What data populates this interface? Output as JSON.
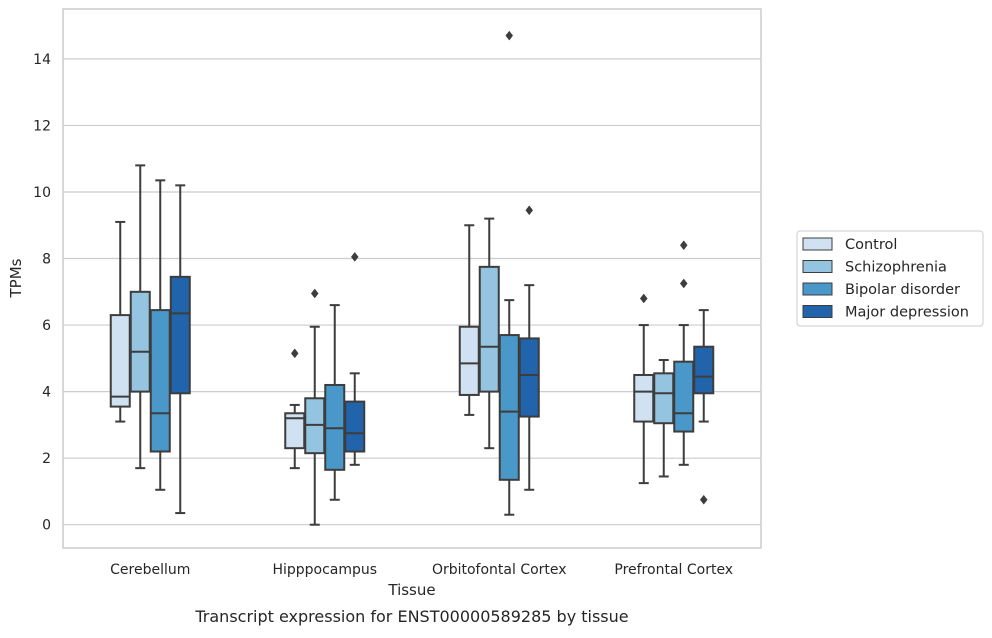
{
  "chart_data": {
    "type": "box",
    "title": "Transcript expression for ENST00000589285 by tissue",
    "xlabel": "Tissue",
    "ylabel": "TPMs",
    "ylim": [
      -0.7,
      15.5
    ],
    "yticks": [
      0,
      2,
      4,
      6,
      8,
      10,
      12,
      14
    ],
    "grid": true,
    "legend_position": "right",
    "categories": [
      "Cerebellum",
      "Hipppocampus",
      "Orbitofontal Cortex",
      "Prefrontal Cortex"
    ],
    "series": [
      {
        "name": "Control",
        "color": "#d0e1f2",
        "boxes": [
          {
            "whisker_low": 3.1,
            "q1": 3.55,
            "median": 3.85,
            "q3": 6.3,
            "whisker_high": 9.1,
            "outliers": []
          },
          {
            "whisker_low": 1.7,
            "q1": 2.3,
            "median": 3.2,
            "q3": 3.35,
            "whisker_high": 3.6,
            "outliers": [
              5.15
            ]
          },
          {
            "whisker_low": 3.3,
            "q1": 3.9,
            "median": 4.85,
            "q3": 5.95,
            "whisker_high": 9.0,
            "outliers": []
          },
          {
            "whisker_low": 1.25,
            "q1": 3.1,
            "median": 4.0,
            "q3": 4.5,
            "whisker_high": 6.0,
            "outliers": [
              6.8
            ]
          }
        ]
      },
      {
        "name": "Schizophrenia",
        "color": "#94c4df",
        "boxes": [
          {
            "whisker_low": 1.7,
            "q1": 4.0,
            "median": 5.2,
            "q3": 7.0,
            "whisker_high": 10.8,
            "outliers": []
          },
          {
            "whisker_low": 0.0,
            "q1": 2.15,
            "median": 3.0,
            "q3": 3.8,
            "whisker_high": 5.95,
            "outliers": [
              6.95
            ]
          },
          {
            "whisker_low": 2.3,
            "q1": 4.0,
            "median": 5.35,
            "q3": 7.75,
            "whisker_high": 9.2,
            "outliers": []
          },
          {
            "whisker_low": 1.45,
            "q1": 3.05,
            "median": 3.95,
            "q3": 4.55,
            "whisker_high": 4.95,
            "outliers": []
          }
        ]
      },
      {
        "name": "Bipolar disorder",
        "color": "#4a98c9",
        "boxes": [
          {
            "whisker_low": 1.05,
            "q1": 2.2,
            "median": 3.35,
            "q3": 6.45,
            "whisker_high": 10.35,
            "outliers": []
          },
          {
            "whisker_low": 0.75,
            "q1": 1.65,
            "median": 2.9,
            "q3": 4.2,
            "whisker_high": 6.6,
            "outliers": []
          },
          {
            "whisker_low": 0.3,
            "q1": 1.35,
            "median": 3.4,
            "q3": 5.7,
            "whisker_high": 6.75,
            "outliers": [
              14.7
            ]
          },
          {
            "whisker_low": 1.8,
            "q1": 2.8,
            "median": 3.35,
            "q3": 4.9,
            "whisker_high": 6.0,
            "outliers": [
              7.25,
              8.4
            ]
          }
        ]
      },
      {
        "name": "Major depression",
        "color": "#2164ab",
        "boxes": [
          {
            "whisker_low": 0.35,
            "q1": 3.95,
            "median": 6.35,
            "q3": 7.45,
            "whisker_high": 10.2,
            "outliers": []
          },
          {
            "whisker_low": 1.8,
            "q1": 2.2,
            "median": 2.75,
            "q3": 3.7,
            "whisker_high": 4.55,
            "outliers": [
              8.05
            ]
          },
          {
            "whisker_low": 1.05,
            "q1": 3.25,
            "median": 4.5,
            "q3": 5.6,
            "whisker_high": 7.2,
            "outliers": [
              9.45
            ]
          },
          {
            "whisker_low": 3.1,
            "q1": 3.95,
            "median": 4.45,
            "q3": 5.35,
            "whisker_high": 6.45,
            "outliers": [
              0.75
            ]
          }
        ]
      }
    ]
  }
}
